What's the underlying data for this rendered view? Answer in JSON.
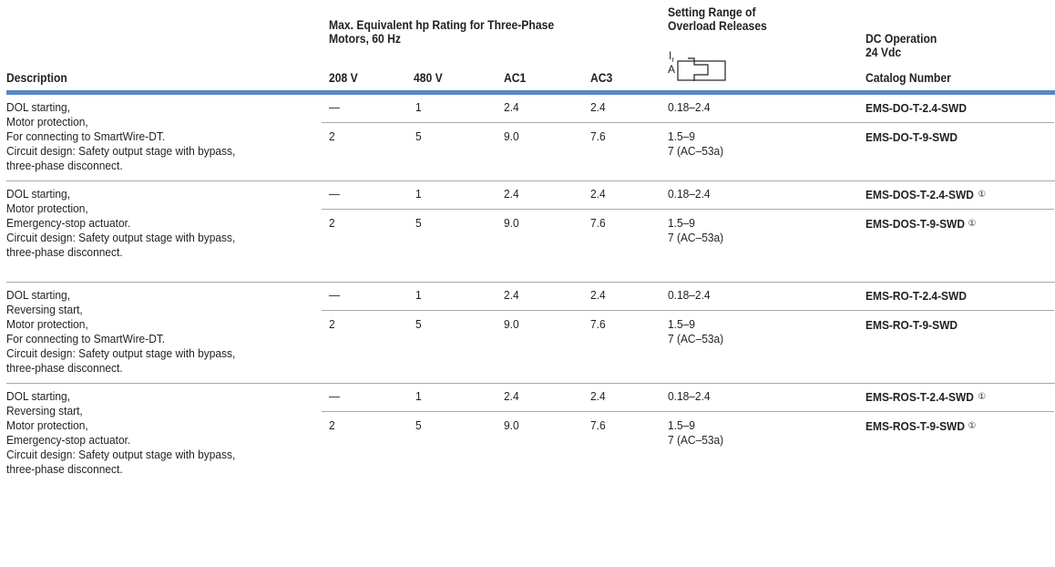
{
  "header": {
    "description": "Description",
    "max_hp_line1": "Max. Equivalent hp Rating for Three-Phase",
    "max_hp_line2": "Motors, 60 Hz",
    "v208": "208 V",
    "v480": "480 V",
    "ac1": "AC1",
    "ac3": "AC3",
    "setting_line1": "Setting Range of",
    "setting_line2": "Overload Releases",
    "symbol_ir": "I",
    "symbol_ir_sub": "r",
    "symbol_a": "A",
    "dc_line1": "DC Operation",
    "dc_line2": "24 Vdc",
    "dc_line3": "Catalog Number"
  },
  "footnote_mark": "①",
  "groups": [
    {
      "description": [
        "DOL starting,",
        "Motor protection,",
        "For connecting to SmartWire-DT.",
        "Circuit design: Safety output stage with bypass,",
        "three-phase disconnect."
      ],
      "rows": [
        {
          "v208": "—",
          "v480": "1",
          "ac1": "2.4",
          "ac3": "2.4",
          "range": [
            "0.18–2.4"
          ],
          "catalog": "EMS-DO-T-2.4-SWD",
          "footnote": ""
        },
        {
          "v208": "2",
          "v480": "5",
          "ac1": "9.0",
          "ac3": "7.6",
          "range": [
            "1.5–9",
            "7 (AC–53a)"
          ],
          "catalog": "EMS-DO-T-9-SWD",
          "footnote": ""
        }
      ]
    },
    {
      "description": [
        "DOL starting,",
        "Motor protection,",
        "Emergency-stop actuator.",
        "Circuit design: Safety output stage with bypass,",
        "three-phase disconnect."
      ],
      "rows": [
        {
          "v208": "—",
          "v480": "1",
          "ac1": "2.4",
          "ac3": "2.4",
          "range": [
            "0.18–2.4"
          ],
          "catalog": "EMS-DOS-T-2.4-SWD",
          "footnote": "①"
        },
        {
          "v208": "2",
          "v480": "5",
          "ac1": "9.0",
          "ac3": "7.6",
          "range": [
            "1.5–9",
            "7 (AC–53a)"
          ],
          "catalog": "EMS-DOS-T-9-SWD",
          "footnote": "①"
        }
      ]
    },
    {
      "description": [
        "DOL starting,",
        "Reversing start,",
        "Motor protection,",
        "For connecting to SmartWire-DT.",
        "Circuit design: Safety output stage with bypass,",
        "three-phase disconnect."
      ],
      "rows": [
        {
          "v208": "—",
          "v480": "1",
          "ac1": "2.4",
          "ac3": "2.4",
          "range": [
            "0.18–2.4"
          ],
          "catalog": "EMS-RO-T-2.4-SWD",
          "footnote": ""
        },
        {
          "v208": "2",
          "v480": "5",
          "ac1": "9.0",
          "ac3": "7.6",
          "range": [
            "1.5–9",
            "7 (AC–53a)"
          ],
          "catalog": "EMS-RO-T-9-SWD",
          "footnote": ""
        }
      ]
    },
    {
      "description": [
        "DOL starting,",
        "Reversing start,",
        "Motor protection,",
        "Emergency-stop actuator.",
        "Circuit design: Safety output stage with bypass,",
        "three-phase disconnect."
      ],
      "rows": [
        {
          "v208": "—",
          "v480": "1",
          "ac1": "2.4",
          "ac3": "2.4",
          "range": [
            "0.18–2.4"
          ],
          "catalog": "EMS-ROS-T-2.4-SWD",
          "footnote": "①"
        },
        {
          "v208": "2",
          "v480": "5",
          "ac1": "9.0",
          "ac3": "7.6",
          "range": [
            "1.5–9",
            "7 (AC–53a)"
          ],
          "catalog": "EMS-ROS-T-9-SWD",
          "footnote": "①"
        }
      ]
    }
  ]
}
